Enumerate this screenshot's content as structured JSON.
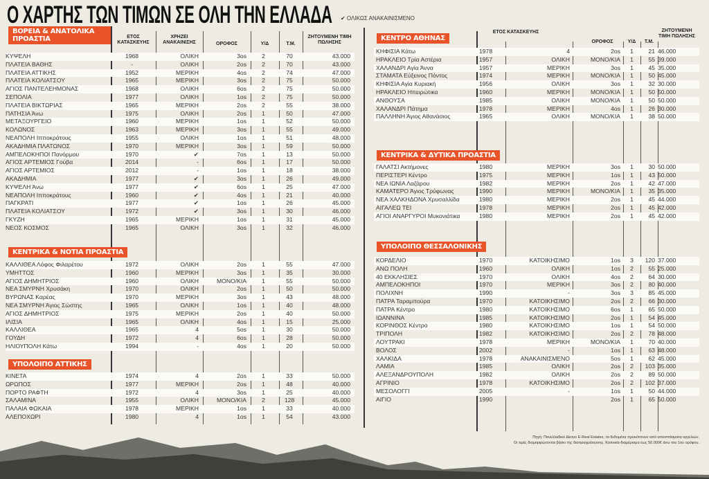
{
  "title": "Ο ΧΑΡΤΗΣ ΤΩΝ ΤΙΜΩΝ ΣΕ ΟΛΗ ΤΗΝ ΕΛΛΑΔΑ",
  "legend": "✔ ΟΛΙΚΩΣ ΑΝΑΚΑΙΝΙΣΜΕΝΟ",
  "accent": "#e8532a",
  "left_headers": {
    "year": "ΕΤΟΣ ΚΑΤΑΣΚΕΥΗΣ",
    "renovation": "ΧΡΗΖΕΙ ΑΝΑΚΑΙΝΙΣΗΣ",
    "floor": "ΟΡΟΦΟΣ",
    "bedrooms": "Υ/Δ",
    "sqm": "Τ.Μ.",
    "price": "ΖΗΤΟΥΜΕΝΗ ΤΙΜΗ ΠΩΛΗΣΗΣ"
  },
  "right_headers": {
    "year": "ΕΤΟΣ ΚΑΤΑΣΚΕΥΗΣ",
    "floor": "ΟΡΟΦΟΣ",
    "bedrooms": "Υ/Δ",
    "sqm": "Τ.Μ.",
    "price": "ΖΗΤΟΥΜΕΝΗ ΤΙΜΗ ΠΩΛΗΣΗΣ"
  },
  "sections": [
    {
      "title": "ΒΟΡΕΙΑ & ΑΝΑΤΟΛΙΚΑ ΠΡΟΑΣΤΙΑ",
      "rows": [
        [
          "ΚΥΨΕΛΗ",
          "1968",
          "ΟΛΙΚΗ",
          "3os",
          "2",
          "70",
          "43.000"
        ],
        [
          "ΠΛΑΤΕΙΑ ΒΑΘΗΣ",
          "-",
          "ΟΛΙΚΗ",
          "2os",
          "2",
          "70",
          "43.000"
        ],
        [
          "ΠΛΑΤΕΙΑ ΑΤΤΙΚΗΣ",
          "1952",
          "ΜΕΡΙΚΗ",
          "4os",
          "2",
          "74",
          "47.000"
        ],
        [
          "ΠΛΑΤΕΙΑ ΚΟΛΙΑΤΣΟΥ",
          "1965",
          "ΜΕΡΙΚΗ",
          "3os",
          "2",
          "75",
          "50.000"
        ],
        [
          "ΑΓΙΟΣ ΠΑΝΤΕΛΕΗΜΟΝΑΣ",
          "1968",
          "ΟΛΙΚΗ",
          "6os",
          "2",
          "75",
          "50.000"
        ],
        [
          "ΣΕΠΟΛΙΑ",
          "1977",
          "ΟΛΙΚΗ",
          "1os",
          "2",
          "75",
          "50.000"
        ],
        [
          "ΠΛΑΤΕΙΑ ΒΙΚΤΩΡΙΑΣ",
          "1965",
          "ΜΕΡΙΚΗ",
          "2os",
          "2",
          "55",
          "38.000"
        ],
        [
          "ΠΑΤΗΣΙΑ Άνω",
          "1975",
          "ΟΛΙΚΗ",
          "2os",
          "1",
          "50",
          "47.000"
        ],
        [
          "ΜΕΤΑΞΟΥΡΓΕΙΟ",
          "1960",
          "ΜΕΡΙΚΗ",
          "1os",
          "1",
          "52",
          "50.000"
        ],
        [
          "ΚΟΛΩΝΟΣ",
          "1963",
          "ΜΕΡΙΚΗ",
          "3os",
          "1",
          "55",
          "49.000"
        ],
        [
          "ΝΕΑΠΟΛΗ Ιπποκράτους",
          "1955",
          "ΟΛΙΚΗ",
          "1os",
          "1",
          "51",
          "48.000"
        ],
        [
          "ΑΚΑΔΗΜΙΑ ΠΛΑΤΩΝΟΣ",
          "1970",
          "ΜΕΡΙΚΗ",
          "3os",
          "1",
          "59",
          "50.000"
        ],
        [
          "ΑΜΠΕΛΟΚΗΠΟΙ Πανόρμου",
          "1970",
          "✔",
          "7os",
          "1",
          "13",
          "50.000"
        ],
        [
          "ΑΓΙΟΣ ΑΡΤΕΜΙΟΣ Γούβα",
          "2014",
          "-",
          "6os",
          "1",
          "17",
          "50.000"
        ],
        [
          "ΑΓΙΟΣ ΑΡΤΕΜΙΟΣ",
          "2012",
          "-",
          "1os",
          "1",
          "18",
          "38.000"
        ],
        [
          "ΑΚΑΔΗΜΙΑ",
          "1977",
          "✔",
          "3os",
          "1",
          "26",
          "49.000"
        ],
        [
          "ΚΥΨΕΛΗ Άνω",
          "1977",
          "✔",
          "6os",
          "1",
          "25",
          "47.000"
        ],
        [
          "ΝΕΑΠΟΛΗ Ιπποκράτους",
          "1960",
          "✔",
          "4os",
          "1",
          "21",
          "40.000"
        ],
        [
          "ΠΑΓΚΡΑΤΙ",
          "1977",
          "✔",
          "1os",
          "1",
          "26",
          "45.000"
        ],
        [
          "ΠΛΑΤΕΙΑ ΚΟΛΙΑΤΣΟΥ",
          "1972",
          "✔",
          "3os",
          "1",
          "30",
          "46.000"
        ],
        [
          "ΓΚΥΖΗ",
          "1965",
          "ΜΕΡΙΚΗ",
          "1os",
          "1",
          "31",
          "45.000"
        ],
        [
          "ΝΕΟΣ ΚΟΣΜΟΣ",
          "1965",
          "ΟΛΙΚΗ",
          "3os",
          "1",
          "32",
          "46.000"
        ]
      ]
    },
    {
      "title": "ΚΕΝΤΡΙΚΑ & ΝΟΤΙΑ ΠΡΟΑΣΤΙΑ",
      "rows": [
        [
          "ΚΑΛΛΙΘΕΑ Λόφος Φιλαρέτου",
          "1972",
          "ΟΛΙΚΗ",
          "2os",
          "1",
          "55",
          "47.000"
        ],
        [
          "ΥΜΗΤΤΟΣ",
          "1960",
          "ΜΕΡΙΚΗ",
          "3os",
          "1",
          "35",
          "30.000"
        ],
        [
          "ΑΓΙΟΣ ΔΗΜΗΤΡΙΟΣ",
          "1960",
          "ΟΛΙΚΗ",
          "ΜΟΝΟ/ΚΙΑ",
          "1",
          "55",
          "50.000"
        ],
        [
          "ΝΕΑ ΣΜΥΡΝΗ Χρυσάκη",
          "1970",
          "ΟΛΙΚΗ",
          "2os",
          "1",
          "50",
          "50.000"
        ],
        [
          "ΒΥΡΩΝΑΣ Καρέας",
          "1970",
          "ΜΕΡΙΚΗ",
          "3os",
          "1",
          "43",
          "48.000"
        ],
        [
          "ΝΕΑ ΣΜΥΡΝΗ Άγιος Σώστης",
          "1965",
          "ΟΛΙΚΗ",
          "1os",
          "1",
          "40",
          "48.000"
        ],
        [
          "ΑΓΙΟΣ ΔΗΜΗΤΡΙΟΣ",
          "1975",
          "ΜΕΡΙΚΗ",
          "2os",
          "1",
          "40",
          "50.000"
        ],
        [
          "ΙΛΙΣΙΑ",
          "1965",
          "ΟΛΙΚΗ",
          "4os",
          "1",
          "15",
          "25.000"
        ],
        [
          "ΚΑΛΛΙΘΕΑ",
          "1965",
          "4",
          "5os",
          "1",
          "30",
          "50.000"
        ],
        [
          "ΓΟΥΔΗ",
          "1972",
          "4",
          "6os",
          "1",
          "28",
          "50.000"
        ],
        [
          "ΗΛΙΟΥΠΟΛΗ Κάτω",
          "1994",
          "-",
          "4os",
          "1",
          "20",
          "50.000"
        ]
      ]
    },
    {
      "title": "ΥΠΟΛΟΙΠΟ ΑΤΤΙΚΗΣ",
      "rows": [
        [
          "ΚΙΝΕΤΑ",
          "1974",
          "4",
          "2os",
          "1",
          "33",
          "50.000"
        ],
        [
          "ΩΡΩΠΟΣ",
          "1977",
          "ΜΕΡΙΚΗ",
          "2os",
          "1",
          "48",
          "40.000"
        ],
        [
          "ΠΟΡΤΟ ΡΑΦΤΗ",
          "1972",
          "4",
          "3os",
          "1",
          "25",
          "40.000"
        ],
        [
          "ΣΑΛΑΜΙΝΑ",
          "1955",
          "ΟΛΙΚΗ",
          "ΜΟΝΟ/ΚΙΑ",
          "2",
          "128",
          "45.000"
        ],
        [
          "ΠΑΛΑΙΑ ΦΩΚΑΙΑ",
          "1978",
          "ΜΕΡΙΚΗ",
          "1os",
          "1",
          "33",
          "40.000"
        ],
        [
          "ΑΛΕΠΟΧΩΡΙ",
          "1980",
          "4",
          "1os",
          "1",
          "54",
          "43.000"
        ]
      ]
    },
    {
      "title": "ΚΕΝΤΡΟ ΑΘΗΝΑΣ",
      "rows": [
        [
          "ΚΗΦΙΣΙΑ Κάτω",
          "1978",
          "4",
          "2os",
          "1",
          "21",
          "46.000"
        ],
        [
          "ΗΡΑΚΛΕΙΟ Τρία Αστέρια",
          "1957",
          "ΟΛΙΚΗ",
          "ΜΟΝΟ/ΚΙΑ",
          "1",
          "55",
          "39.000"
        ],
        [
          "ΧΑΛΑΝΔΡΙ Αγία Άννα",
          "1957",
          "ΜΕΡΙΚΗ",
          "3os",
          "1",
          "45",
          "35.000"
        ],
        [
          "ΣΤΑΜΑΤΑ Εύξεινος Πόντος",
          "1974",
          "ΜΕΡΙΚΗ",
          "ΜΟΝΟ/ΚΙΑ",
          "1",
          "50",
          "45.000"
        ],
        [
          "ΚΗΦΙΣΙΑ Αγία Κυριακή",
          "1956",
          "ΟΛΙΚΗ",
          "3os",
          "1",
          "32",
          "30.000"
        ],
        [
          "ΗΡΑΚΛΕΙΟ Ηπειρώτικα",
          "1960",
          "ΜΕΡΙΚΗ",
          "ΜΟΝΟ/ΚΙΑ",
          "1",
          "50",
          "50.000"
        ],
        [
          "ΑΝΘΟΥΣΑ",
          "1985",
          "ΟΛΙΚΗ",
          "ΜΟΝΟ/ΚΙΑ",
          "1",
          "50",
          "50.000"
        ],
        [
          "ΧΑΛΑΝΔΡΙ Πάτημα",
          "1978",
          "ΜΕΡΙΚΗ",
          "4os",
          "1",
          "26",
          "30.000"
        ],
        [
          "ΠΑΛΛΗΝΗ Άγιος Αθανάσιος",
          "1965",
          "ΟΛΙΚΗ",
          "ΜΟΝΟ/ΚΙΑ",
          "1",
          "38",
          "50.000"
        ]
      ]
    },
    {
      "title": "ΚΕΝΤΡΙΚΑ & ΔΥΤΙΚΑ ΠΡΟΑΣΤΙΑ",
      "rows": [
        [
          "ΓΑΛΑΤΣΙ Ακτήμονες",
          "1980",
          "ΜΕΡΙΚΗ",
          "3os",
          "1",
          "30",
          "50.000"
        ],
        [
          "ΠΕΡΙΣΤΕΡΙ Κέντρο",
          "1975",
          "ΜΕΡΙΚΗ",
          "1os",
          "1",
          "43",
          "50.000"
        ],
        [
          "ΝΕΑ ΙΩΝΙΑ Λαζάρου",
          "1982",
          "ΜΕΡΙΚΗ",
          "2os",
          "1",
          "42",
          "47.000"
        ],
        [
          "ΚΑΜΑΤΕΡΟ Άγιος Τρύφωνας",
          "1990",
          "ΜΕΡΙΚΗ",
          "ΜΟΝΟ/ΚΙΑ",
          "1",
          "35",
          "35.000"
        ],
        [
          "ΝΕΑ ΧΑΛΚΗΔΟΝΑ Χρυσαλλίδα",
          "1980",
          "ΜΕΡΙΚΗ",
          "2os",
          "1",
          "45",
          "44.000"
        ],
        [
          "ΑΙΓΑΛΕΩ ΤΕΙ",
          "1978",
          "ΜΕΡΙΚΗ",
          "2os",
          "1",
          "45",
          "42.000"
        ],
        [
          "ΑΓΙΟΙ ΑΝΑΡΓΥΡΟΙ Μυκονιάτικα",
          "1980",
          "ΜΕΡΙΚΗ",
          "2os",
          "1",
          "45",
          "42.000"
        ]
      ]
    },
    {
      "title": "ΥΠΟΛΟΙΠΟ ΘΕΣΣΑΛΟΝΙΚΗΣ",
      "rows": [
        [
          "ΚΟΡΔΕΛΙΟ",
          "1970",
          "ΚΑΤΟΙΚΗΣΙΜΟ",
          "1os",
          "3",
          "120",
          "37.000"
        ],
        [
          "ΑΝΩ ΠΟΛΗ",
          "1960",
          "ΟΛΙΚΗ",
          "1os",
          "2",
          "55",
          "25.000"
        ],
        [
          "40 ΕΚΚΛΗΣΙΕΣ",
          "1970",
          "ΟΛΙΚΗ",
          "4os",
          "2",
          "64",
          "30.000"
        ],
        [
          "ΑΜΠΕΛΟΚΗΠΟΙ",
          "1970",
          "ΜΕΡΙΚΗ",
          "3os",
          "2",
          "80",
          "40.000"
        ],
        [
          "ΠΟΛΙΧΝΗ",
          "1990",
          "-",
          "3os",
          "3",
          "85",
          "45.000"
        ],
        [
          "ΠΑΤΡΑ Ταραμπούρα",
          "1970",
          "ΚΑΤΟΙΚΗΣΙΜΟ",
          "2os",
          "2",
          "66",
          "30.000"
        ],
        [
          "ΠΑΤΡΑ Κέντρο",
          "1980",
          "ΚΑΤΟΙΚΗΣΙΜΟ",
          "6os",
          "1",
          "65",
          "50.000"
        ],
        [
          "ΙΩΑΝΝΙΝΑ",
          "1985",
          "ΚΑΤΟΙΚΗΣΙΜΟ",
          "2os",
          "1",
          "54",
          "45.000"
        ],
        [
          "ΚΟΡΙΝΘΟΣ Κέντρο",
          "1980",
          "ΚΑΤΟΙΚΗΣΙΜΟ",
          "1os",
          "1",
          "54",
          "50.000"
        ],
        [
          "ΤΡΙΠΟΛΗ",
          "1982",
          "ΚΑΤΟΙΚΗΣΙΜΟ",
          "2os",
          "2",
          "78",
          "48.000"
        ],
        [
          "ΛΟΥΤΡΑΚΙ",
          "1978",
          "ΜΕΡΙΚΗ",
          "ΜΟΝΟ/ΚΙΑ",
          "1",
          "70",
          "40.000"
        ],
        [
          "ΒΟΛΟΣ",
          "2002",
          "-",
          "1os",
          "1",
          "63",
          "48.000"
        ],
        [
          "ΧΑΛΚΙΔΑ",
          "1978",
          "ΑΝΑΚΑΙΝΙΣΜΕΝΟ",
          "5os",
          "1",
          "62",
          "45.000"
        ],
        [
          "ΛΑΜΙΑ",
          "1985",
          "ΟΛΙΚΗ",
          "2os",
          "2",
          "103",
          "35.000"
        ],
        [
          "ΑΛΕΞΑΝΔΡΟΥΠΟΛΗ",
          "1982",
          "ΟΛΙΚΗ",
          "2os",
          "2",
          "89",
          "50.000"
        ],
        [
          "ΑΓΡΙΝΙΟ",
          "1978",
          "ΚΑΤΟΙΚΗΣΙΜΟ",
          "2os",
          "2",
          "102",
          "37.000"
        ],
        [
          "ΜΕΣΟΛΟΓΓΙ",
          "2005",
          "-",
          "1os",
          "1",
          "50",
          "44.000"
        ],
        [
          "ΑΙΓΙΟ",
          "1990",
          "",
          "2os",
          "1",
          "65",
          "50.000"
        ]
      ]
    }
  ],
  "footnote": [
    "Πηγή: Πανελλαδικό Δίκτυο E-Real Estates, τα δεδομένα προκύπτουν από αποσπάσματα αγγελιών.",
    "Οι τιμές διαμορφώνονται βάσει της διαπραγμάτευσης. Κατοικία-διαμέρισμα έως 50.000€ άνω του 1ου ορόφου."
  ]
}
